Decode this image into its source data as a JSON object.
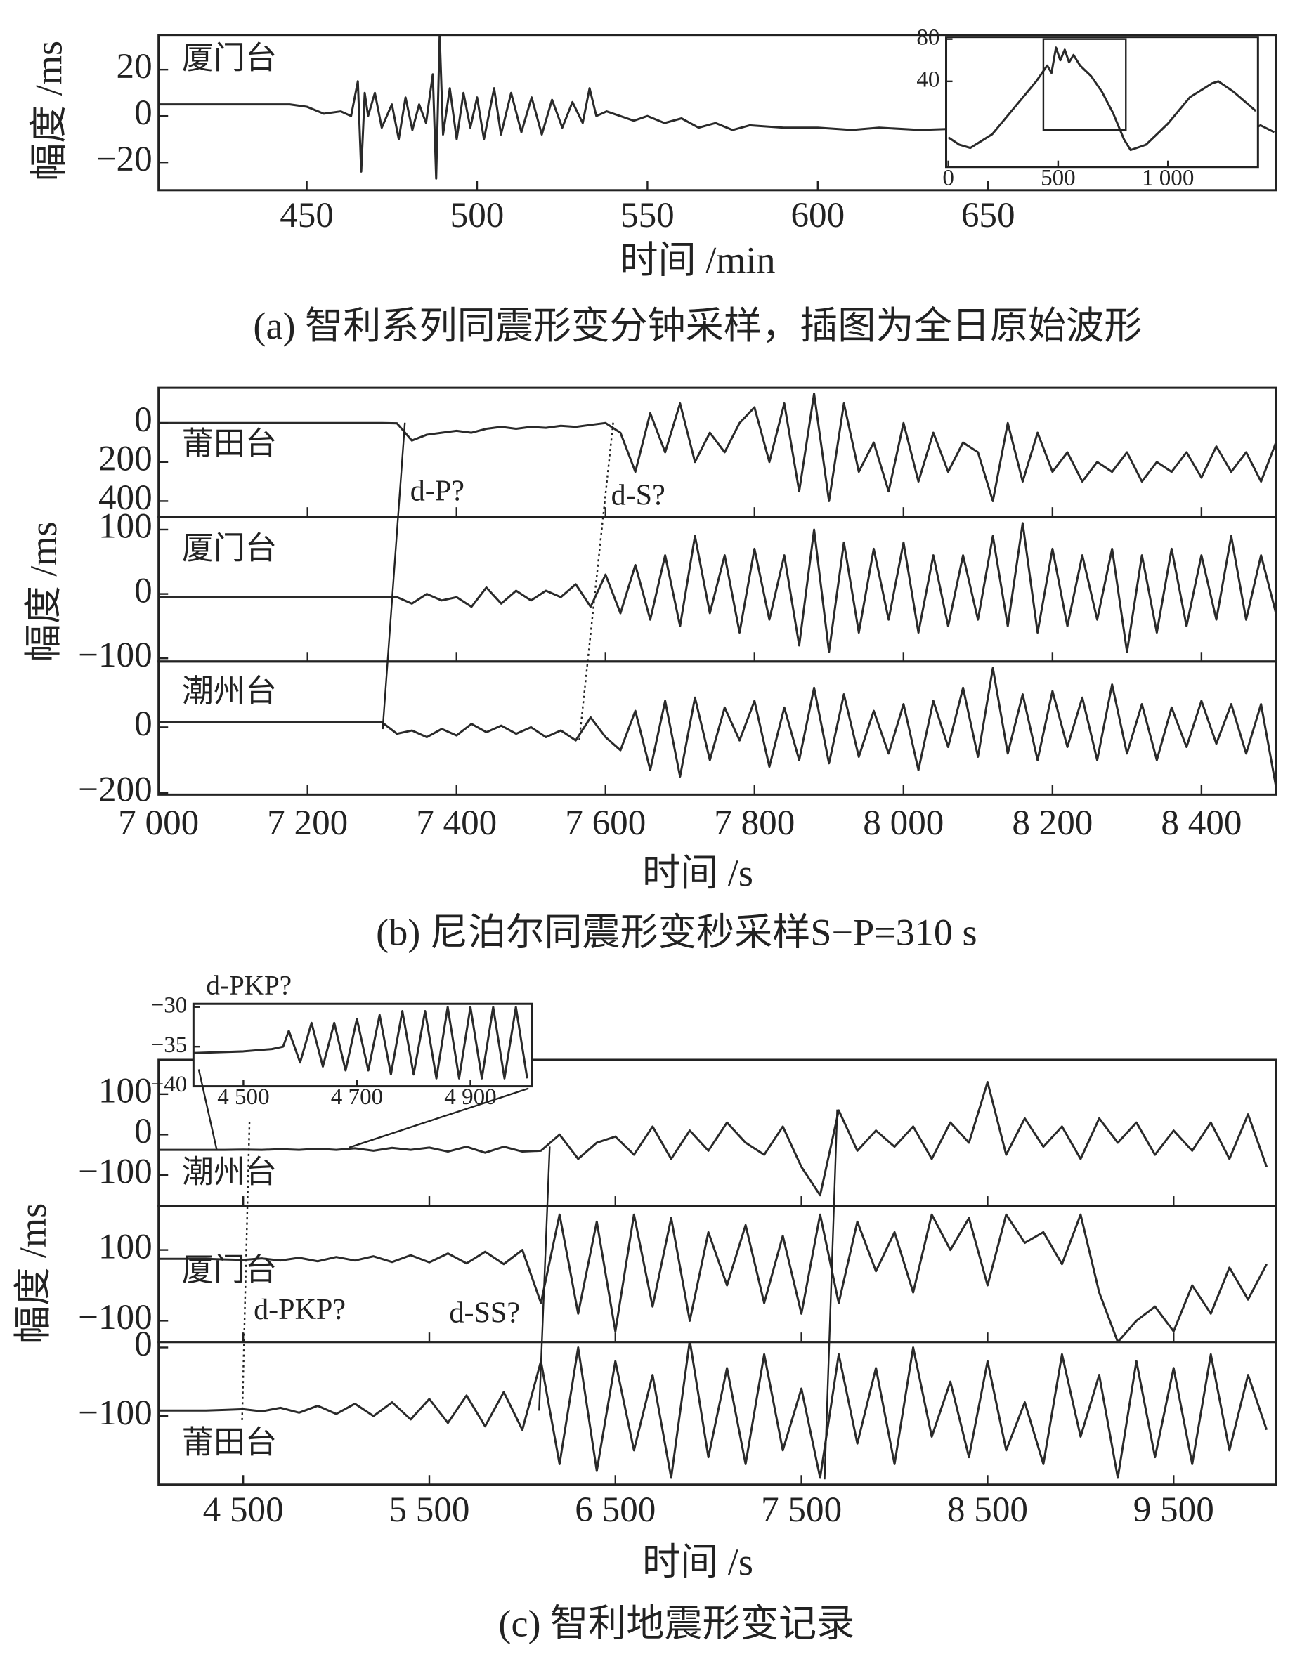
{
  "chart_data": [
    {
      "caption": "(a) 智利系列同震形变分钟采样，插图为全日原始波形",
      "xlabel": "时间 /min",
      "ylabel": "幅度 /ms",
      "xlim": [
        406.5,
        734.5
      ],
      "xticks": [
        450,
        500,
        550,
        600,
        650
      ],
      "x": [
        406,
        445,
        450,
        455,
        460,
        463,
        465,
        466,
        467,
        468,
        470,
        472,
        475,
        477,
        479,
        481,
        483,
        485,
        487,
        488,
        489,
        490,
        492,
        494,
        496,
        498,
        500,
        502,
        505,
        507,
        510,
        513,
        516,
        519,
        522,
        525,
        528,
        531,
        533,
        535,
        538,
        542,
        546,
        550,
        555,
        560,
        565,
        570,
        575,
        580,
        590,
        600,
        610,
        618,
        630,
        650,
        690,
        720,
        727,
        730,
        734
      ],
      "subplots": [
        {
          "type": "line",
          "name": "厦门台",
          "ylim": [
            -32,
            35
          ],
          "yticks": [
            20,
            0,
            {
              "value": -20,
              "label": "−20"
            }
          ],
          "values": [
            5,
            5,
            4,
            1,
            2,
            0,
            15,
            -24,
            10,
            0,
            10,
            -5,
            5,
            -10,
            8,
            -6,
            5,
            -3,
            18,
            -27,
            35,
            -8,
            12,
            -10,
            10,
            -5,
            8,
            -10,
            12,
            -8,
            10,
            -7,
            8,
            -8,
            7,
            -5,
            6,
            -3,
            12,
            0,
            2,
            0,
            -2,
            0,
            -3,
            -1,
            -5,
            -3,
            -6,
            -4,
            -5,
            -5,
            -6,
            -5,
            -6,
            -5,
            -6,
            -5,
            -6,
            -4,
            -7
          ]
        }
      ],
      "inset": {
        "type": "line",
        "xlim": [
          -10,
          1410
        ],
        "ylim": [
          -41,
          82
        ],
        "xticks": [
          0,
          500,
          {
            "value": 1000,
            "label": "1 000"
          }
        ],
        "yticks": [
          80,
          40
        ],
        "x": [
          0,
          50,
          100,
          200,
          300,
          400,
          450,
          470,
          490,
          510,
          530,
          550,
          570,
          600,
          650,
          700,
          750,
          800,
          830,
          900,
          1000,
          1100,
          1200,
          1230,
          1300,
          1400
        ],
        "values": [
          -13,
          -20,
          -23,
          -10,
          15,
          40,
          55,
          48,
          72,
          60,
          70,
          58,
          65,
          55,
          45,
          30,
          10,
          -15,
          -25,
          -20,
          0,
          25,
          38,
          40,
          30,
          12
        ]
      }
    },
    {
      "caption": "(b) 尼泊尔同震形变秒采样S−P=310 s",
      "xlabel": "时间 /s",
      "ylabel": "幅度 /ms",
      "xlim": [
        7000,
        8500
      ],
      "xticks": [
        {
          "value": 7000,
          "label": "7 000"
        },
        {
          "value": 7200,
          "label": "7 200"
        },
        {
          "value": 7400,
          "label": "7 400"
        },
        {
          "value": 7600,
          "label": "7 600"
        },
        {
          "value": 7800,
          "label": "7 800"
        },
        {
          "value": 8000,
          "label": "8 000"
        },
        {
          "value": 8200,
          "label": "8 200"
        },
        {
          "value": 8400,
          "label": "8 400"
        }
      ],
      "x": [
        7000,
        7300,
        7320,
        7340,
        7360,
        7380,
        7400,
        7420,
        7440,
        7460,
        7480,
        7500,
        7520,
        7540,
        7560,
        7580,
        7600,
        7620,
        7640,
        7660,
        7680,
        7700,
        7720,
        7740,
        7760,
        7780,
        7800,
        7820,
        7840,
        7860,
        7880,
        7900,
        7920,
        7940,
        7960,
        7980,
        8000,
        8020,
        8040,
        8060,
        8080,
        8100,
        8120,
        8140,
        8160,
        8180,
        8200,
        8220,
        8240,
        8260,
        8280,
        8300,
        8320,
        8340,
        8360,
        8380,
        8400,
        8420,
        8440,
        8460,
        8480,
        8500
      ],
      "subplots": [
        {
          "type": "line",
          "name": "莆田台",
          "ylim": [
            -180,
            480
          ],
          "inverted": true,
          "yticks": [
            0,
            200,
            400
          ],
          "annotations": [
            "d-P?",
            "d-S?"
          ],
          "values": [
            0,
            0,
            2,
            90,
            60,
            50,
            40,
            50,
            30,
            20,
            30,
            20,
            25,
            15,
            20,
            10,
            0,
            50,
            250,
            -50,
            150,
            -100,
            200,
            50,
            150,
            0,
            -80,
            200,
            -100,
            350,
            -150,
            400,
            -100,
            250,
            100,
            350,
            0,
            300,
            50,
            250,
            100,
            150,
            400,
            0,
            300,
            50,
            250,
            150,
            300,
            200,
            250,
            150,
            300,
            200,
            250,
            150,
            280,
            120,
            250,
            150,
            300,
            100
          ]
        },
        {
          "type": "line",
          "name": "厦门台",
          "ylim": [
            -105,
            120
          ],
          "yticks": [
            100,
            0,
            {
              "value": -100,
              "label": "−100"
            }
          ],
          "values": [
            -5,
            -5,
            -5,
            -15,
            0,
            -10,
            -5,
            -20,
            10,
            -15,
            5,
            -10,
            5,
            -5,
            15,
            -20,
            30,
            -30,
            45,
            -40,
            60,
            -50,
            90,
            -30,
            60,
            -60,
            70,
            -40,
            60,
            -80,
            100,
            -90,
            80,
            -60,
            70,
            -40,
            80,
            -60,
            60,
            -50,
            60,
            -40,
            90,
            -50,
            110,
            -60,
            70,
            -50,
            60,
            -40,
            70,
            -90,
            60,
            -60,
            70,
            -50,
            60,
            -40,
            90,
            -40,
            60,
            -30
          ]
        },
        {
          "type": "line",
          "name": "潮州台",
          "ylim": [
            -205,
            200
          ],
          "yticks": [
            0,
            {
              "value": -200,
              "label": "−200"
            }
          ],
          "values": [
            15,
            15,
            -20,
            -10,
            -30,
            -5,
            -25,
            10,
            -15,
            5,
            -20,
            0,
            -30,
            -10,
            -40,
            30,
            -30,
            -70,
            50,
            -130,
            80,
            -150,
            90,
            -100,
            60,
            -40,
            80,
            -120,
            60,
            -100,
            120,
            -110,
            100,
            -90,
            50,
            -80,
            70,
            -130,
            80,
            -60,
            120,
            -90,
            180,
            -80,
            100,
            -100,
            110,
            -60,
            90,
            -100,
            130,
            -80,
            70,
            -100,
            60,
            -60,
            80,
            -50,
            70,
            -80,
            70,
            -180
          ]
        }
      ]
    },
    {
      "caption": "(c) 智利地震形变记录",
      "xlabel": "时间 /s",
      "ylabel": "幅度 /ms",
      "xlim": [
        4045,
        10050
      ],
      "xticks": [
        {
          "value": 4500,
          "label": "4 500"
        },
        {
          "value": 5500,
          "label": "5 500"
        },
        {
          "value": 6500,
          "label": "6 500"
        },
        {
          "value": 7500,
          "label": "7 500"
        },
        {
          "value": 8500,
          "label": "8 500"
        },
        {
          "value": 9500,
          "label": "9 500"
        }
      ],
      "x": [
        4045,
        4300,
        4400,
        4500,
        4600,
        4700,
        4800,
        4900,
        5000,
        5100,
        5200,
        5300,
        5400,
        5500,
        5600,
        5700,
        5800,
        5900,
        6000,
        6100,
        6200,
        6300,
        6400,
        6500,
        6600,
        6700,
        6800,
        6900,
        7000,
        7100,
        7200,
        7300,
        7400,
        7500,
        7600,
        7700,
        7800,
        7900,
        8000,
        8100,
        8200,
        8300,
        8400,
        8500,
        8600,
        8700,
        8800,
        8900,
        9000,
        9100,
        9200,
        9300,
        9400,
        9500,
        9600,
        9700,
        9800,
        9900,
        10000
      ],
      "subplots": [
        {
          "type": "line",
          "name": "潮州台",
          "ylim": [
            -176,
            185
          ],
          "yticks": [
            100,
            0,
            {
              "value": -100,
              "label": "−100"
            }
          ],
          "values": [
            -38,
            -38,
            -38,
            -37,
            -38,
            -36,
            -38,
            -35,
            -38,
            -34,
            -40,
            -33,
            -38,
            -32,
            -42,
            -30,
            -45,
            -30,
            -42,
            -40,
            0,
            -60,
            -20,
            -5,
            -50,
            20,
            -60,
            10,
            -40,
            30,
            -20,
            -50,
            20,
            -80,
            -150,
            60,
            -40,
            10,
            -30,
            20,
            -60,
            30,
            -20,
            130,
            -50,
            40,
            -30,
            20,
            -60,
            40,
            -20,
            30,
            -50,
            10,
            -40,
            30,
            -60,
            50,
            -80
          ]
        },
        {
          "type": "line",
          "name": "厦门台",
          "ylim": [
            -160,
            225
          ],
          "yticks": [
            100,
            {
              "value": -100,
              "label": "−100"
            }
          ],
          "annotations": [
            "d-PKP?",
            "d-SS?"
          ],
          "values": [
            75,
            75,
            73,
            72,
            76,
            70,
            78,
            68,
            80,
            70,
            82,
            66,
            85,
            65,
            90,
            62,
            95,
            60,
            100,
            -50,
            200,
            -80,
            180,
            -130,
            200,
            -60,
            190,
            -100,
            150,
            0,
            170,
            -50,
            140,
            -80,
            200,
            -50,
            180,
            40,
            150,
            -20,
            200,
            100,
            190,
            0,
            200,
            120,
            150,
            60,
            200,
            -20,
            -160,
            -100,
            -60,
            -130,
            0,
            -80,
            50,
            -40,
            60
          ]
        },
        {
          "type": "line",
          "name": "莆田台",
          "ylim": [
            -200,
            8
          ],
          "yticks": [
            0,
            {
              "value": -100,
              "label": "−100"
            }
          ],
          "values": [
            -92,
            -92,
            -91,
            -90,
            -93,
            -88,
            -95,
            -85,
            -97,
            -82,
            -100,
            -80,
            -105,
            -75,
            -110,
            -70,
            -115,
            -65,
            -120,
            -20,
            -170,
            0,
            -180,
            -20,
            -150,
            -40,
            -190,
            10,
            -160,
            -30,
            -170,
            -10,
            -150,
            -60,
            -190,
            -10,
            -140,
            -30,
            -170,
            0,
            -130,
            -50,
            -160,
            -20,
            -150,
            -80,
            -170,
            -10,
            -130,
            -40,
            -190,
            -20,
            -160,
            -30,
            -170,
            -10,
            -150,
            -40,
            -120
          ]
        }
      ],
      "inset": {
        "type": "line",
        "annotation": "d-PKP?",
        "xlim": [
          4412,
          5008
        ],
        "ylim": [
          -40,
          -29.6
        ],
        "xticks": [
          {
            "value": 4500,
            "label": "4 500"
          },
          {
            "value": 4700,
            "label": "4 700"
          },
          {
            "value": 4900,
            "label": "4 900"
          }
        ],
        "yticks": [
          {
            "value": -30,
            "label": "−30"
          },
          {
            "value": -35,
            "label": "−35"
          },
          {
            "value": -40,
            "label": "−40"
          }
        ],
        "x": [
          4412,
          4500,
          4550,
          4570,
          4580,
          4600,
          4620,
          4640,
          4660,
          4680,
          4700,
          4720,
          4740,
          4760,
          4780,
          4800,
          4820,
          4840,
          4860,
          4880,
          4900,
          4920,
          4940,
          4960,
          4980,
          5000
        ],
        "values": [
          -35.8,
          -35.6,
          -35.3,
          -35,
          -33,
          -37,
          -32,
          -37.5,
          -32,
          -38,
          -31.5,
          -38,
          -31,
          -38.5,
          -30.5,
          -38.5,
          -30.5,
          -39,
          -30,
          -39,
          -30,
          -39,
          -30,
          -39,
          -30,
          -39
        ]
      }
    }
  ]
}
